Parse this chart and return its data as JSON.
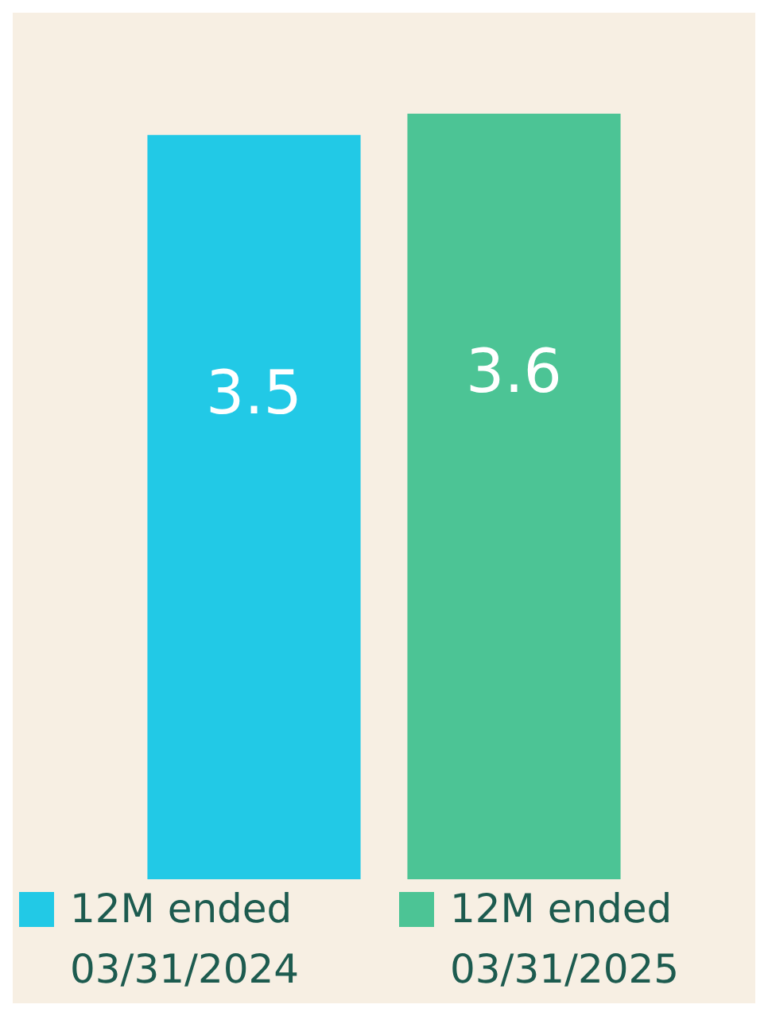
{
  "chart_data": {
    "type": "bar",
    "categories": [
      null
    ],
    "series": [
      {
        "name": "12M ended 03/31/2024",
        "color": "#22c9e6",
        "values": [
          3.5
        ]
      },
      {
        "name": "12M ended 03/31/2025",
        "color": "#4cc495",
        "values": [
          3.6
        ]
      }
    ],
    "data_labels": true,
    "legend": "bottom"
  }
}
